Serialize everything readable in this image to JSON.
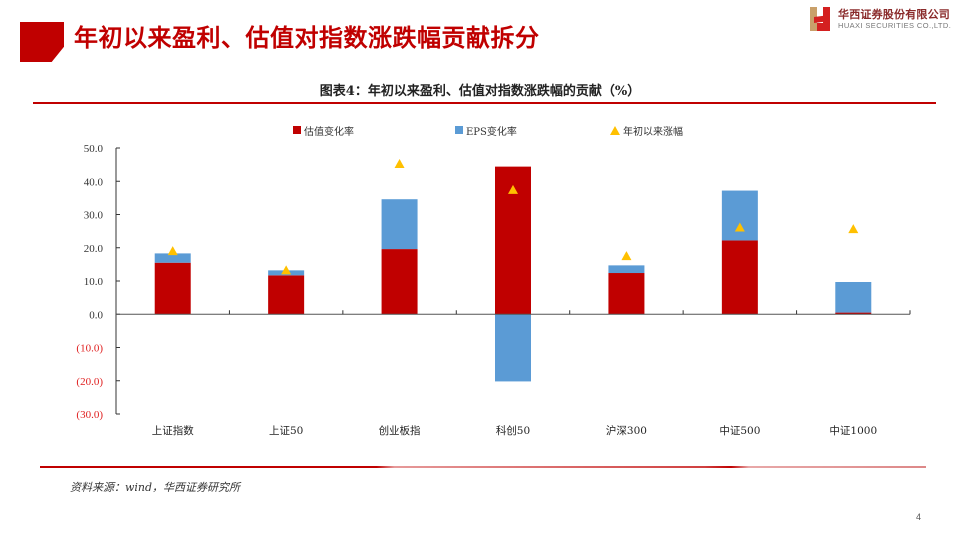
{
  "header": {
    "title": "年初以来盈利、估值对指数涨跌幅贡献拆分",
    "accent_color": "#c00000"
  },
  "logo": {
    "cn": "华西证券股份有限公司",
    "en": "HUAXI SECURITIES CO.,LTD."
  },
  "chart_title": "图表4：年初以来盈利、估值对指数涨跌幅的贡献（%）",
  "legend": [
    {
      "label": "估值变化率",
      "color": "#c00000",
      "shape": "square"
    },
    {
      "label": "EPS变化率",
      "color": "#5b9bd5",
      "shape": "square"
    },
    {
      "label": "年初以来涨幅",
      "color": "#ffc000",
      "shape": "triangle"
    }
  ],
  "chart_data": {
    "type": "bar",
    "stacked": true,
    "title": "图表4：年初以来盈利、估值对指数涨跌幅的贡献（%）",
    "xlabel": "",
    "ylabel": "",
    "ylim": [
      -30,
      50
    ],
    "yticks": [
      50,
      40,
      30,
      20,
      10,
      0,
      -10,
      -20,
      -30
    ],
    "ytick_labels": [
      "50.0",
      "40.0",
      "30.0",
      "20.0",
      "10.0",
      "0.0",
      "(10.0)",
      "(20.0)",
      "(30.0)"
    ],
    "grid": false,
    "legend_position": "top",
    "categories": [
      "上证指数",
      "上证50",
      "创业板指",
      "科创50",
      "沪深300",
      "中证500",
      "中证1000"
    ],
    "series": [
      {
        "name": "估值变化率",
        "type": "bar",
        "color": "#c00000",
        "values": [
          15.5,
          11.7,
          19.6,
          44.4,
          12.4,
          22.2,
          0.5
        ]
      },
      {
        "name": "EPS变化率",
        "type": "bar",
        "color": "#5b9bd5",
        "values": [
          2.8,
          1.5,
          15.0,
          -20.2,
          2.3,
          15.0,
          9.2
        ]
      },
      {
        "name": "年初以来涨幅",
        "type": "scatter",
        "marker": "triangle",
        "color": "#ffc000",
        "values": [
          19.0,
          13.2,
          45.2,
          37.4,
          17.5,
          26.1,
          25.6
        ]
      }
    ]
  },
  "footer": {
    "source": "资料来源：wind，华西证券研究所",
    "page_number": "4"
  }
}
